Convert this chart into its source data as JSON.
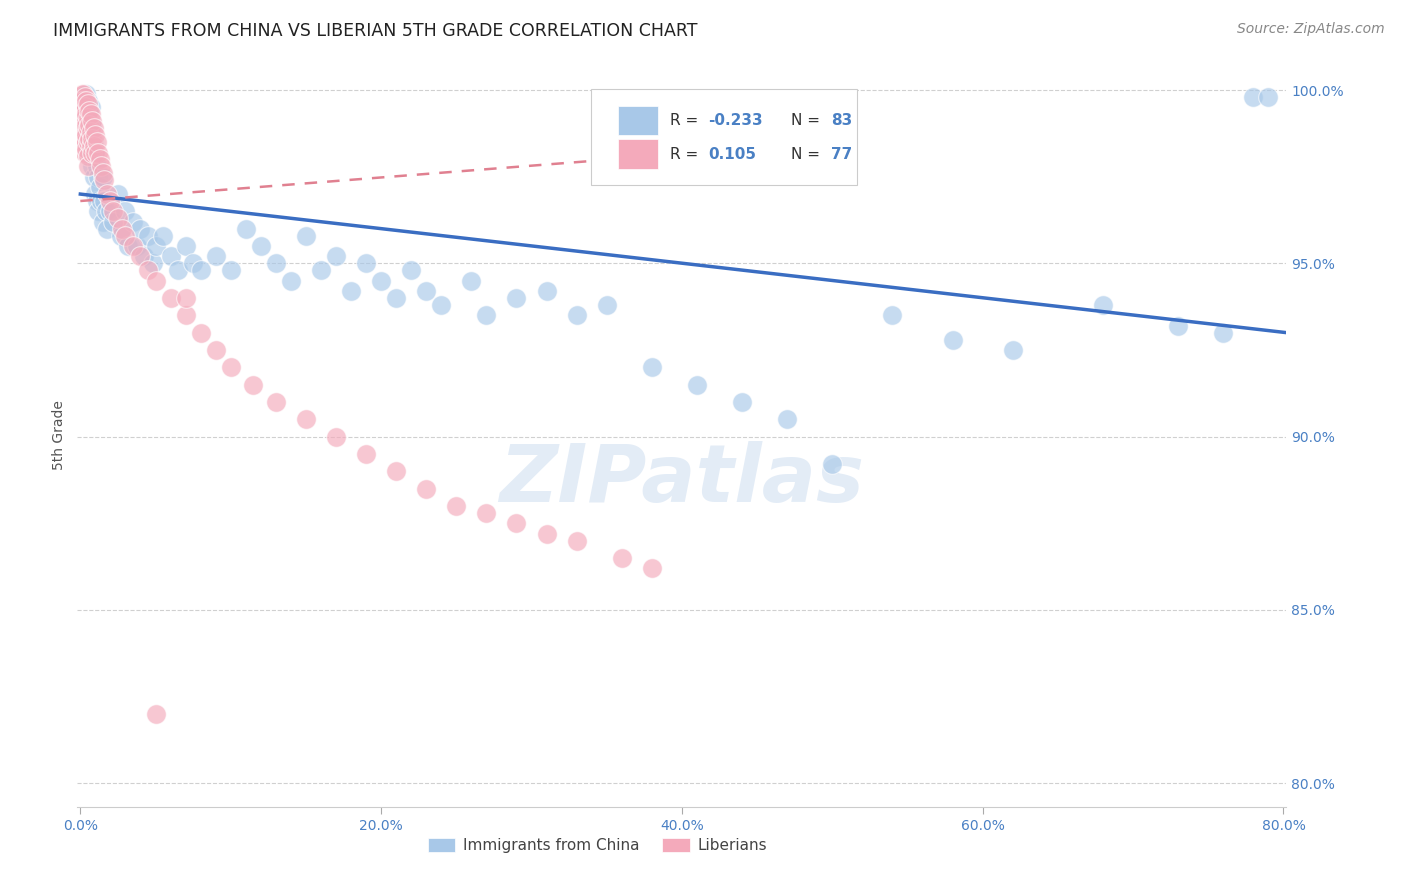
{
  "title": "IMMIGRANTS FROM CHINA VS LIBERIAN 5TH GRADE CORRELATION CHART",
  "source": "Source: ZipAtlas.com",
  "ylabel": "5th Grade",
  "xlim": [
    -0.002,
    0.802
  ],
  "ylim": [
    0.793,
    1.008
  ],
  "xticks": [
    0.0,
    0.2,
    0.4,
    0.6,
    0.8
  ],
  "xtick_labels": [
    "0.0%",
    "20.0%",
    "40.0%",
    "60.0%",
    "80.0%"
  ],
  "yticks": [
    0.8,
    0.85,
    0.9,
    0.95,
    1.0
  ],
  "ytick_labels": [
    "80.0%",
    "85.0%",
    "90.0%",
    "95.0%",
    "100.0%"
  ],
  "legend_R_china": "-0.233",
  "legend_N_china": "83",
  "legend_R_liberia": "0.105",
  "legend_N_liberia": "77",
  "china_color": "#a8c8e8",
  "liberia_color": "#f4aabb",
  "china_line_color": "#3a6dc2",
  "liberia_line_color": "#e08090",
  "background_color": "#ffffff",
  "grid_color": "#d0d0d0",
  "china_trend_x": [
    0.0,
    0.802
  ],
  "china_trend_y": [
    0.97,
    0.93
  ],
  "liberia_trend_x": [
    0.0,
    0.5
  ],
  "liberia_trend_y": [
    0.968,
    0.985
  ],
  "watermark_text": "ZIPatlas",
  "title_fontsize": 12.5,
  "axis_label_fontsize": 10,
  "tick_fontsize": 10,
  "legend_fontsize": 11,
  "source_fontsize": 10,
  "china_scatter_x": [
    0.002,
    0.003,
    0.003,
    0.004,
    0.004,
    0.005,
    0.005,
    0.005,
    0.006,
    0.006,
    0.007,
    0.007,
    0.008,
    0.008,
    0.009,
    0.009,
    0.01,
    0.01,
    0.011,
    0.011,
    0.012,
    0.012,
    0.013,
    0.014,
    0.015,
    0.015,
    0.016,
    0.017,
    0.018,
    0.02,
    0.022,
    0.025,
    0.027,
    0.03,
    0.032,
    0.035,
    0.038,
    0.04,
    0.042,
    0.045,
    0.048,
    0.05,
    0.055,
    0.06,
    0.065,
    0.07,
    0.075,
    0.08,
    0.09,
    0.1,
    0.11,
    0.12,
    0.13,
    0.14,
    0.15,
    0.16,
    0.17,
    0.18,
    0.19,
    0.2,
    0.21,
    0.22,
    0.23,
    0.24,
    0.26,
    0.27,
    0.29,
    0.31,
    0.33,
    0.35,
    0.38,
    0.41,
    0.44,
    0.47,
    0.5,
    0.54,
    0.58,
    0.62,
    0.68,
    0.73,
    0.76,
    0.78,
    0.79
  ],
  "china_scatter_y": [
    0.998,
    0.996,
    0.994,
    0.999,
    0.992,
    0.997,
    0.99,
    0.985,
    0.993,
    0.988,
    0.995,
    0.982,
    0.99,
    0.978,
    0.985,
    0.975,
    0.982,
    0.97,
    0.978,
    0.968,
    0.975,
    0.965,
    0.972,
    0.968,
    0.975,
    0.962,
    0.968,
    0.965,
    0.96,
    0.965,
    0.962,
    0.97,
    0.958,
    0.965,
    0.955,
    0.962,
    0.955,
    0.96,
    0.952,
    0.958,
    0.95,
    0.955,
    0.958,
    0.952,
    0.948,
    0.955,
    0.95,
    0.948,
    0.952,
    0.948,
    0.96,
    0.955,
    0.95,
    0.945,
    0.958,
    0.948,
    0.952,
    0.942,
    0.95,
    0.945,
    0.94,
    0.948,
    0.942,
    0.938,
    0.945,
    0.935,
    0.94,
    0.942,
    0.935,
    0.938,
    0.92,
    0.915,
    0.91,
    0.905,
    0.892,
    0.935,
    0.928,
    0.925,
    0.938,
    0.932,
    0.93,
    0.998,
    0.998
  ],
  "liberia_scatter_x": [
    0.001,
    0.001,
    0.001,
    0.001,
    0.002,
    0.002,
    0.002,
    0.002,
    0.002,
    0.002,
    0.003,
    0.003,
    0.003,
    0.003,
    0.003,
    0.003,
    0.004,
    0.004,
    0.004,
    0.004,
    0.004,
    0.005,
    0.005,
    0.005,
    0.005,
    0.005,
    0.005,
    0.006,
    0.006,
    0.006,
    0.007,
    0.007,
    0.007,
    0.008,
    0.008,
    0.008,
    0.009,
    0.009,
    0.01,
    0.01,
    0.011,
    0.012,
    0.013,
    0.014,
    0.015,
    0.016,
    0.018,
    0.02,
    0.022,
    0.025,
    0.028,
    0.03,
    0.035,
    0.04,
    0.045,
    0.05,
    0.06,
    0.07,
    0.08,
    0.09,
    0.1,
    0.115,
    0.13,
    0.15,
    0.17,
    0.19,
    0.21,
    0.23,
    0.25,
    0.27,
    0.29,
    0.31,
    0.33,
    0.36,
    0.38,
    0.05,
    0.07
  ],
  "liberia_scatter_y": [
    0.999,
    0.997,
    0.995,
    0.993,
    0.999,
    0.997,
    0.994,
    0.991,
    0.988,
    0.985,
    0.998,
    0.995,
    0.992,
    0.988,
    0.985,
    0.982,
    0.997,
    0.993,
    0.99,
    0.987,
    0.983,
    0.996,
    0.992,
    0.989,
    0.985,
    0.981,
    0.978,
    0.994,
    0.99,
    0.986,
    0.993,
    0.988,
    0.984,
    0.991,
    0.986,
    0.982,
    0.989,
    0.984,
    0.987,
    0.982,
    0.985,
    0.982,
    0.98,
    0.978,
    0.976,
    0.974,
    0.97,
    0.968,
    0.965,
    0.963,
    0.96,
    0.958,
    0.955,
    0.952,
    0.948,
    0.945,
    0.94,
    0.935,
    0.93,
    0.925,
    0.92,
    0.915,
    0.91,
    0.905,
    0.9,
    0.895,
    0.89,
    0.885,
    0.88,
    0.878,
    0.875,
    0.872,
    0.87,
    0.865,
    0.862,
    0.82,
    0.94
  ]
}
